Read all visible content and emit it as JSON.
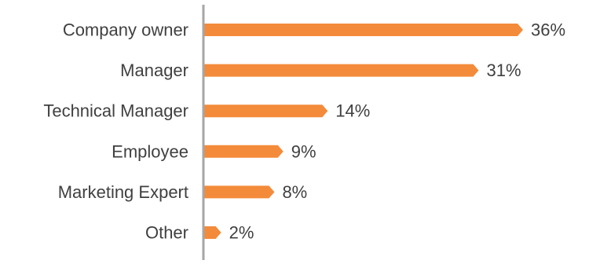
{
  "colors": {
    "bar": "#F38B3A",
    "axis": "#A6A6A6",
    "text": "#404040",
    "background": "#FFFFFF"
  },
  "chart_data": {
    "type": "bar",
    "orientation": "horizontal",
    "categories": [
      "Company owner",
      "Manager",
      "Technical Manager",
      "Employee",
      "Marketing Expert",
      "Other"
    ],
    "values": [
      36,
      31,
      14,
      9,
      8,
      2
    ],
    "data_labels": [
      "36%",
      "31%",
      "14%",
      "9%",
      "8%",
      "2%"
    ],
    "value_unit": "%",
    "xlim": [
      0,
      36
    ],
    "grid": false,
    "legend": "none"
  }
}
